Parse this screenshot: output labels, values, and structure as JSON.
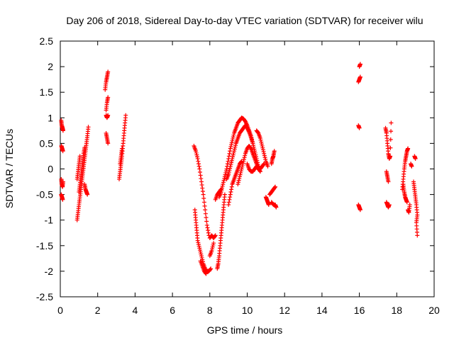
{
  "chart_data": {
    "type": "scatter",
    "title": "Day 206 of 2018, Sidereal Day-to-day VTEC variation (SDTVAR) for receiver wilu",
    "xlabel": "GPS time / hours",
    "ylabel": "SDTVAR / TECUs",
    "xlim": [
      0,
      20
    ],
    "ylim": [
      -2.5,
      2.5
    ],
    "xticks": [
      0,
      2,
      4,
      6,
      8,
      10,
      12,
      14,
      16,
      18,
      20
    ],
    "yticks": [
      -2.5,
      -2,
      -1.5,
      -1,
      -0.5,
      0,
      0.5,
      1,
      1.5,
      2,
      2.5
    ],
    "grid": false,
    "marker": "+",
    "series_color": "#ff0000",
    "series": [
      {
        "name": "SDTVAR",
        "segments": [
          [
            [
              0.05,
              0.95
            ],
            [
              0.08,
              0.85
            ],
            [
              0.12,
              0.8
            ],
            [
              0.15,
              0.75
            ]
          ],
          [
            [
              0.06,
              0.45
            ],
            [
              0.1,
              0.4
            ],
            [
              0.14,
              0.35
            ]
          ],
          [
            [
              0.05,
              -0.2
            ],
            [
              0.08,
              -0.3
            ],
            [
              0.12,
              -0.35
            ],
            [
              0.15,
              -0.25
            ]
          ],
          [
            [
              0.05,
              -0.5
            ],
            [
              0.09,
              -0.55
            ],
            [
              0.13,
              -0.6
            ]
          ],
          [
            [
              0.9,
              -1.0
            ],
            [
              0.95,
              -0.85
            ],
            [
              1.0,
              -0.7
            ],
            [
              1.05,
              -0.55
            ],
            [
              1.1,
              -0.4
            ],
            [
              1.15,
              -0.25
            ],
            [
              1.2,
              -0.1
            ],
            [
              1.25,
              0.05
            ],
            [
              1.3,
              0.2
            ],
            [
              1.35,
              0.35
            ],
            [
              1.4,
              0.5
            ],
            [
              1.45,
              0.65
            ],
            [
              1.5,
              0.82
            ]
          ],
          [
            [
              0.9,
              -0.2
            ],
            [
              0.95,
              -0.05
            ],
            [
              1.0,
              0.1
            ],
            [
              1.05,
              0.25
            ]
          ],
          [
            [
              1.0,
              -0.45
            ],
            [
              1.05,
              -0.3
            ],
            [
              1.1,
              -0.15
            ],
            [
              1.15,
              0.0
            ],
            [
              1.2,
              0.15
            ],
            [
              1.25,
              0.3
            ],
            [
              1.3,
              0.42
            ]
          ],
          [
            [
              1.3,
              -0.3
            ],
            [
              1.35,
              -0.4
            ],
            [
              1.4,
              -0.45
            ],
            [
              1.45,
              -0.5
            ]
          ],
          [
            [
              2.4,
              1.55
            ],
            [
              2.45,
              1.7
            ],
            [
              2.5,
              1.8
            ],
            [
              2.55,
              1.9
            ]
          ],
          [
            [
              2.45,
              1.15
            ],
            [
              2.5,
              1.3
            ],
            [
              2.55,
              1.4
            ]
          ],
          [
            [
              2.45,
              1.05
            ],
            [
              2.5,
              1.0
            ],
            [
              2.55,
              1.05
            ]
          ],
          [
            [
              2.45,
              0.7
            ],
            [
              2.5,
              0.6
            ],
            [
              2.55,
              0.5
            ]
          ],
          [
            [
              3.15,
              -0.2
            ],
            [
              3.2,
              -0.05
            ],
            [
              3.25,
              0.1
            ],
            [
              3.3,
              0.25
            ],
            [
              3.35,
              0.45
            ],
            [
              3.4,
              0.65
            ],
            [
              3.45,
              0.85
            ],
            [
              3.5,
              1.05
            ]
          ],
          [
            [
              3.2,
              0.1
            ],
            [
              3.25,
              0.25
            ],
            [
              3.3,
              0.4
            ]
          ],
          [
            [
              7.15,
              0.45
            ],
            [
              7.25,
              0.35
            ],
            [
              7.35,
              0.2
            ],
            [
              7.45,
              0.0
            ],
            [
              7.55,
              -0.25
            ],
            [
              7.65,
              -0.5
            ],
            [
              7.75,
              -0.8
            ],
            [
              7.85,
              -1.1
            ],
            [
              7.95,
              -1.3
            ]
          ],
          [
            [
              7.2,
              -0.8
            ],
            [
              7.25,
              -1.0
            ],
            [
              7.3,
              -1.2
            ],
            [
              7.35,
              -1.4
            ],
            [
              7.45,
              -1.55
            ],
            [
              7.55,
              -1.7
            ],
            [
              7.65,
              -1.85
            ],
            [
              7.75,
              -1.95
            ],
            [
              7.85,
              -2.0
            ],
            [
              7.95,
              -2.0
            ],
            [
              8.05,
              -1.95
            ]
          ],
          [
            [
              7.5,
              -1.8
            ],
            [
              7.6,
              -1.9
            ],
            [
              7.7,
              -2.0
            ],
            [
              7.8,
              -2.05
            ]
          ],
          [
            [
              8.0,
              -1.35
            ],
            [
              8.1,
              -1.3
            ],
            [
              8.2,
              -1.35
            ],
            [
              8.3,
              -1.3
            ]
          ],
          [
            [
              8.0,
              -1.7
            ],
            [
              8.1,
              -1.6
            ],
            [
              8.2,
              -1.45
            ]
          ],
          [
            [
              8.4,
              -1.95
            ],
            [
              8.45,
              -1.85
            ],
            [
              8.5,
              -1.7
            ],
            [
              8.55,
              -1.5
            ],
            [
              8.6,
              -1.3
            ],
            [
              8.65,
              -1.1
            ],
            [
              8.7,
              -0.9
            ],
            [
              8.75,
              -0.7
            ],
            [
              8.8,
              -0.5
            ]
          ],
          [
            [
              8.3,
              -0.6
            ],
            [
              8.4,
              -0.5
            ],
            [
              8.5,
              -0.45
            ],
            [
              8.6,
              -0.4
            ]
          ],
          [
            [
              8.5,
              -0.55
            ],
            [
              8.6,
              -0.45
            ],
            [
              8.7,
              -0.3
            ],
            [
              8.8,
              -0.15
            ],
            [
              8.9,
              0.0
            ],
            [
              9.0,
              0.2
            ],
            [
              9.1,
              0.4
            ],
            [
              9.2,
              0.55
            ],
            [
              9.3,
              0.7
            ],
            [
              9.4,
              0.8
            ],
            [
              9.5,
              0.9
            ],
            [
              9.6,
              0.95
            ],
            [
              9.7,
              1.0
            ],
            [
              9.8,
              0.98
            ],
            [
              9.9,
              0.93
            ],
            [
              10.0,
              0.85
            ],
            [
              10.1,
              0.75
            ],
            [
              10.2,
              0.65
            ],
            [
              10.3,
              0.5
            ],
            [
              10.4,
              0.35
            ],
            [
              10.5,
              0.2
            ],
            [
              10.6,
              0.05
            ]
          ],
          [
            [
              8.9,
              -0.2
            ],
            [
              9.0,
              -0.1
            ],
            [
              9.1,
              0.05
            ],
            [
              9.2,
              0.2
            ],
            [
              9.3,
              0.35
            ],
            [
              9.4,
              0.5
            ],
            [
              9.5,
              0.6
            ],
            [
              9.6,
              0.7
            ],
            [
              9.7,
              0.75
            ],
            [
              9.8,
              0.8
            ],
            [
              9.9,
              0.85
            ],
            [
              10.0,
              0.8
            ],
            [
              10.1,
              0.72
            ],
            [
              10.2,
              0.62
            ],
            [
              10.3,
              0.5
            ]
          ],
          [
            [
              9.0,
              -0.7
            ],
            [
              9.1,
              -0.5
            ],
            [
              9.2,
              -0.3
            ],
            [
              9.3,
              -0.2
            ],
            [
              9.4,
              -0.1
            ],
            [
              9.5,
              0.0
            ],
            [
              9.6,
              0.1
            ],
            [
              9.7,
              0.15
            ]
          ],
          [
            [
              9.5,
              -0.3
            ],
            [
              9.6,
              -0.15
            ],
            [
              9.7,
              0.0
            ],
            [
              9.8,
              0.15
            ],
            [
              9.9,
              0.3
            ],
            [
              10.0,
              0.4
            ],
            [
              10.1,
              0.45
            ],
            [
              10.2,
              0.4
            ],
            [
              10.3,
              0.3
            ],
            [
              10.4,
              0.2
            ],
            [
              10.5,
              0.1
            ],
            [
              10.6,
              0.0
            ],
            [
              10.7,
              -0.05
            ]
          ],
          [
            [
              10.0,
              0.1
            ],
            [
              10.1,
              0.0
            ],
            [
              10.2,
              -0.05
            ],
            [
              10.3,
              -0.05
            ],
            [
              10.4,
              0.0
            ],
            [
              10.5,
              0.05
            ],
            [
              10.6,
              0.05
            ],
            [
              10.7,
              0.0
            ],
            [
              10.8,
              0.05
            ],
            [
              10.9,
              0.1
            ]
          ],
          [
            [
              10.5,
              0.75
            ],
            [
              10.6,
              0.7
            ],
            [
              10.7,
              0.6
            ],
            [
              10.8,
              0.45
            ],
            [
              10.9,
              0.3
            ],
            [
              11.0,
              0.15
            ],
            [
              11.1,
              0.05
            ]
          ],
          [
            [
              11.0,
              -0.55
            ],
            [
              11.05,
              -0.6
            ],
            [
              11.1,
              -0.65
            ],
            [
              11.15,
              -0.7
            ]
          ],
          [
            [
              11.2,
              -0.5
            ],
            [
              11.3,
              -0.45
            ],
            [
              11.4,
              -0.4
            ],
            [
              11.5,
              -0.35
            ]
          ],
          [
            [
              11.3,
              -0.65
            ],
            [
              11.4,
              -0.7
            ],
            [
              11.5,
              -0.7
            ],
            [
              11.55,
              -0.75
            ]
          ],
          [
            [
              11.3,
              0.1
            ],
            [
              11.35,
              0.2
            ],
            [
              11.4,
              0.25
            ],
            [
              11.45,
              0.35
            ]
          ],
          [
            [
              15.95,
              1.7
            ],
            [
              16.0,
              1.75
            ],
            [
              16.05,
              1.8
            ]
          ],
          [
            [
              16.0,
              2.0
            ],
            [
              16.05,
              2.05
            ]
          ],
          [
            [
              15.95,
              0.85
            ],
            [
              16.0,
              0.8
            ]
          ],
          [
            [
              15.95,
              -0.7
            ],
            [
              16.0,
              -0.75
            ],
            [
              16.05,
              -0.8
            ]
          ],
          [
            [
              17.4,
              0.8
            ],
            [
              17.45,
              0.7
            ],
            [
              17.5,
              0.5
            ],
            [
              17.55,
              0.3
            ],
            [
              17.6,
              0.2
            ],
            [
              17.65,
              0.25
            ],
            [
              17.7,
              0.9
            ]
          ],
          [
            [
              17.45,
              -0.05
            ],
            [
              17.5,
              -0.15
            ],
            [
              17.55,
              -0.25
            ]
          ],
          [
            [
              17.45,
              -0.65
            ],
            [
              17.5,
              -0.7
            ],
            [
              17.55,
              -0.75
            ],
            [
              17.6,
              -0.7
            ]
          ],
          [
            [
              18.3,
              -0.4
            ],
            [
              18.35,
              -0.2
            ],
            [
              18.4,
              0.0
            ],
            [
              18.45,
              0.15
            ],
            [
              18.5,
              0.25
            ],
            [
              18.55,
              0.35
            ],
            [
              18.6,
              0.4
            ]
          ],
          [
            [
              18.35,
              -0.3
            ],
            [
              18.4,
              -0.45
            ],
            [
              18.45,
              -0.55
            ],
            [
              18.5,
              -0.6
            ],
            [
              18.55,
              -0.65
            ]
          ],
          [
            [
              18.6,
              -0.8
            ],
            [
              18.65,
              -0.85
            ],
            [
              18.7,
              -0.7
            ]
          ],
          [
            [
              18.75,
              0.1
            ],
            [
              18.8,
              0.05
            ]
          ],
          [
            [
              18.95,
              0.25
            ],
            [
              19.0,
              0.2
            ]
          ],
          [
            [
              18.9,
              -0.25
            ],
            [
              18.95,
              -0.4
            ],
            [
              19.0,
              -0.55
            ],
            [
              19.05,
              -0.7
            ],
            [
              19.1,
              -0.9
            ],
            [
              19.05,
              -1.05
            ],
            [
              19.1,
              -1.3
            ]
          ]
        ]
      }
    ]
  }
}
